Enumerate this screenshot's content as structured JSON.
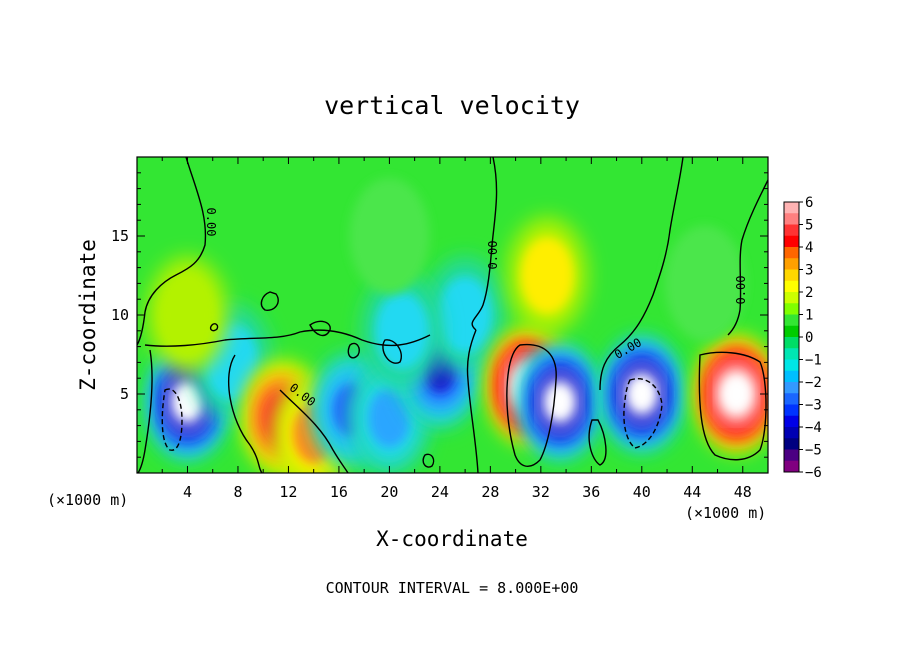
{
  "chart_data": {
    "type": "heatmap",
    "title": "vertical velocity",
    "xlabel": "X-coordinate",
    "ylabel": "Z-coordinate",
    "x_units": "(×1000 m)",
    "y_units": "(×1000 m)",
    "footer": "CONTOUR INTERVAL = 8.000E+00",
    "xlim": [
      0,
      50
    ],
    "ylim": [
      0,
      20
    ],
    "x_ticks": [
      4,
      8,
      12,
      16,
      20,
      24,
      28,
      32,
      36,
      40,
      44,
      48
    ],
    "y_ticks": [
      5,
      10,
      15
    ],
    "colorbar": {
      "min": -6,
      "max": 6,
      "ticks": [
        6,
        5,
        4,
        3,
        2,
        1,
        0,
        -1,
        -2,
        -3,
        -4,
        -5,
        -6
      ]
    },
    "contour_label": "0.00",
    "features": [
      {
        "x": 4,
        "z": 4.5,
        "w": -8
      },
      {
        "x": 7.5,
        "z": 7,
        "w": -2
      },
      {
        "x": 11.5,
        "z": 3.5,
        "w": 4.5
      },
      {
        "x": 14,
        "z": 2.5,
        "w": 3
      },
      {
        "x": 17,
        "z": 4,
        "w": -4
      },
      {
        "x": 20,
        "z": 3.5,
        "w": -3
      },
      {
        "x": 24,
        "z": 6.5,
        "w": -4.5
      },
      {
        "x": 26,
        "z": 10,
        "w": -2
      },
      {
        "x": 21,
        "z": 9,
        "w": -1.5
      },
      {
        "x": 31,
        "z": 5.5,
        "w": 9
      },
      {
        "x": 33.5,
        "z": 4.5,
        "w": -8
      },
      {
        "x": 40,
        "z": 5,
        "w": -8
      },
      {
        "x": 47.5,
        "z": 5,
        "w": 9
      },
      {
        "x": 32.5,
        "z": 12.5,
        "w": 2
      },
      {
        "x": 4,
        "z": 10,
        "w": 1.5
      },
      {
        "x": 45,
        "z": 12,
        "w": 0.8
      },
      {
        "x": 20,
        "z": 15,
        "w": 0.3
      }
    ]
  }
}
